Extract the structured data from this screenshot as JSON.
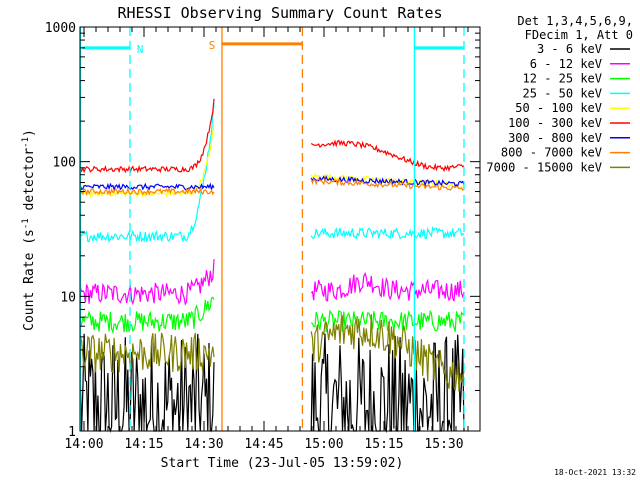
{
  "chart_data": {
    "type": "line",
    "title": "RHESSI Observing Summary Count Rates",
    "xlabel": "Start Time (23-Jul-05 13:59:02)",
    "ylabel_prefix": "Count Rate (s",
    "ylabel_sup1": "-1",
    "ylabel_mid": " detector",
    "ylabel_sup2": "-1",
    "ylabel_suffix": ")",
    "yscale": "log",
    "ylim": [
      1,
      1000
    ],
    "xlim_min": [
      0,
      100
    ],
    "x_ticks": [
      {
        "v": 1,
        "label": "14:00"
      },
      {
        "v": 16,
        "label": "14:15"
      },
      {
        "v": 31,
        "label": "14:30"
      },
      {
        "v": 46,
        "label": "14:45"
      },
      {
        "v": 61,
        "label": "15:00"
      },
      {
        "v": 76,
        "label": "15:15"
      },
      {
        "v": 91,
        "label": "15:30"
      }
    ],
    "y_ticks": [
      {
        "v": 1,
        "label": "1"
      },
      {
        "v": 10,
        "label": "10"
      },
      {
        "v": 100,
        "label": "100"
      },
      {
        "v": 1000,
        "label": "1000"
      }
    ],
    "legend": {
      "header": [
        "Det 1,3,4,5,6,9,",
        "FDecim 1, Att 0"
      ],
      "placement": "right"
    },
    "series": [
      {
        "name": "3 - 6 keV",
        "color": "#000000",
        "base": 1.5,
        "jitter": 0.55
      },
      {
        "name": "6 - 12 keV",
        "color": "#ff00ff",
        "base": 10.5,
        "jitter": 0.08
      },
      {
        "name": "12 - 25 keV",
        "color": "#00ff00",
        "base": 6.5,
        "jitter": 0.08
      },
      {
        "name": "25 - 50 keV",
        "color": "#00ffff",
        "base": 28,
        "jitter": 0.04
      },
      {
        "name": "50 - 100 keV",
        "color": "#ffff00",
        "base": 58,
        "jitter": 0.02
      },
      {
        "name": "100 - 300 keV",
        "color": "#ff0000",
        "base": 88,
        "jitter": 0.02
      },
      {
        "name": "300 - 800 keV",
        "color": "#0000ff",
        "base": 65,
        "jitter": 0.02
      },
      {
        "name": "800 - 7000 keV",
        "color": "#ff8000",
        "base": 60,
        "jitter": 0.02
      },
      {
        "name": "7000 - 15000 keV",
        "color": "#808000",
        "base": 3.8,
        "jitter": 0.15
      }
    ],
    "markers": [
      {
        "label": "N",
        "color": "#00ffff",
        "solid_x": 0.1,
        "dash_x": 12.5,
        "bar_y": 700,
        "bar_x": [
          0.6,
          12.5
        ],
        "label_x": 15
      },
      {
        "label": "S",
        "color": "#ff8000",
        "solid_x": 35.5,
        "dash_x": 55.6,
        "bar_y": 750,
        "bar_x": [
          35.5,
          55.6
        ],
        "label_x": 33
      },
      {
        "label": "",
        "color": "#00ffff",
        "solid_x": 83.6,
        "dash_x": 96,
        "bar_y": 700,
        "bar_x": [
          83.6,
          96
        ],
        "label_x": 0
      }
    ],
    "segments": [
      {
        "x": [
          0.1,
          33.5
        ]
      },
      {
        "x": [
          57.8,
          96
        ]
      }
    ]
  },
  "footer_date": "18-Oct-2021 13:32"
}
